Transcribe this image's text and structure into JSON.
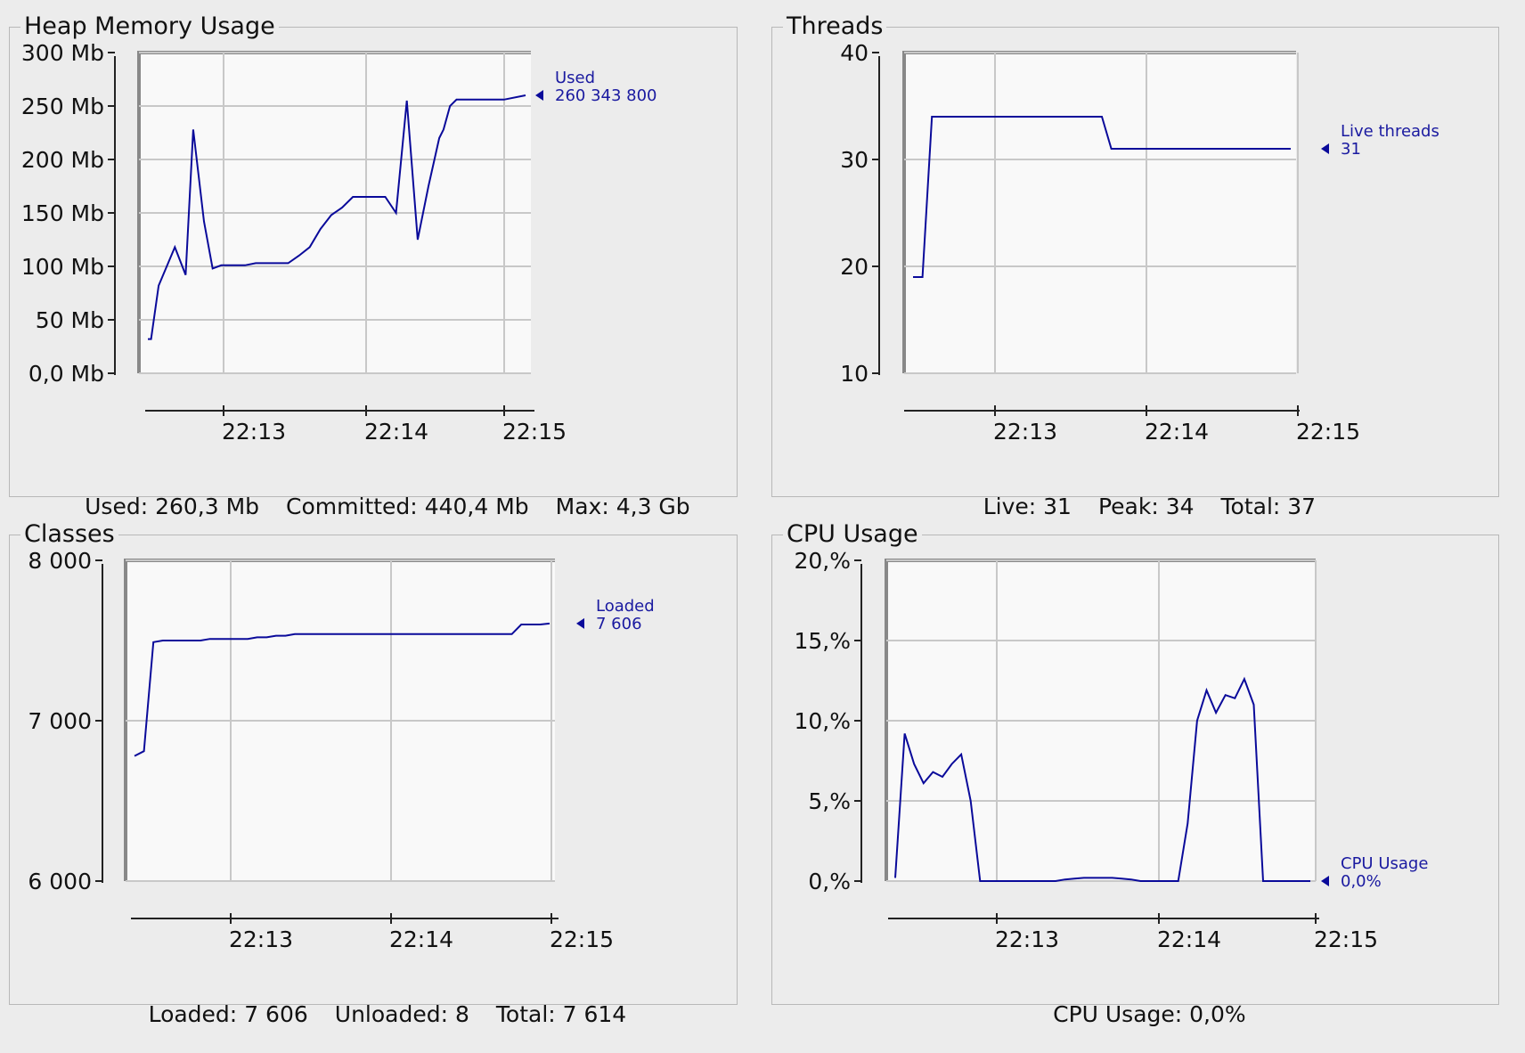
{
  "colors": {
    "series": "#0a0a9a",
    "grid": "#c8c8c8",
    "plot_bg": "#f9f9f9",
    "panel_bg": "#ececec"
  },
  "panels": [
    {
      "id": "heap",
      "title": "Heap Memory Usage",
      "legend": {
        "label": "Used",
        "value": "260 343 800"
      },
      "footer": [
        {
          "label": "Used:",
          "value": "260,3 Mb"
        },
        {
          "label": "Committed:",
          "value": "440,4 Mb"
        },
        {
          "label": "Max:",
          "value": "4,3 Gb"
        }
      ]
    },
    {
      "id": "threads",
      "title": "Threads",
      "legend": {
        "label": "Live threads",
        "value": "31"
      },
      "footer": [
        {
          "label": "Live:",
          "value": "31"
        },
        {
          "label": "Peak:",
          "value": "34"
        },
        {
          "label": "Total:",
          "value": "37"
        }
      ]
    },
    {
      "id": "classes",
      "title": "Classes",
      "legend": {
        "label": "Loaded",
        "value": "7 606"
      },
      "footer": [
        {
          "label": "Loaded:",
          "value": "7 606"
        },
        {
          "label": "Unloaded:",
          "value": "8"
        },
        {
          "label": "Total:",
          "value": "7 614"
        }
      ]
    },
    {
      "id": "cpu",
      "title": "CPU Usage",
      "legend": {
        "label": "CPU Usage",
        "value": "0,0%"
      },
      "footer": [
        {
          "label": "CPU Usage:",
          "value": "0,0%"
        }
      ]
    }
  ],
  "chart_data": [
    {
      "type": "line",
      "panel": "heap",
      "series": [
        {
          "name": "Used",
          "x": [
            0,
            0.03,
            0.1,
            0.25,
            0.35,
            0.42,
            0.52,
            0.6,
            0.68,
            0.74,
            0.8,
            0.9,
            1.0,
            1.1,
            1.2,
            1.3,
            1.4,
            1.5,
            1.6,
            1.7,
            1.8,
            1.9,
            2.0,
            2.1,
            2.2,
            2.3,
            2.4,
            2.5,
            2.6,
            2.7,
            2.74,
            2.8,
            2.86,
            2.93,
            2.98,
            3.06,
            3.1,
            3.18,
            3.3,
            3.5
          ],
          "values": [
            32,
            32,
            82,
            118,
            92,
            228,
            142,
            98,
            101,
            101,
            101,
            101,
            103,
            103,
            103,
            103,
            110,
            118,
            135,
            148,
            155,
            165,
            165,
            165,
            165,
            150,
            255,
            125,
            175,
            220,
            228,
            250,
            256,
            256,
            256,
            256,
            256,
            256,
            256,
            260
          ]
        }
      ],
      "y_ticks": [
        "0,0 Mb",
        "50 Mb",
        "100 Mb",
        "150 Mb",
        "200 Mb",
        "250 Mb",
        "300 Mb"
      ],
      "x_ticks": [
        "22:13",
        "22:14",
        "22:15"
      ],
      "ylim": [
        0,
        300
      ]
    },
    {
      "type": "line",
      "panel": "threads",
      "series": [
        {
          "name": "Live threads",
          "values": [
            19,
            19,
            34,
            34,
            34,
            34,
            34,
            34,
            34,
            34,
            34,
            34,
            34,
            34,
            34,
            34,
            34,
            34,
            34,
            34,
            34,
            31,
            31,
            31,
            31,
            31,
            31,
            31,
            31,
            31,
            31,
            31,
            31,
            31,
            31,
            31,
            31,
            31,
            31,
            31,
            31
          ]
        }
      ],
      "y_ticks": [
        "10",
        "20",
        "30",
        "40"
      ],
      "x_ticks": [
        "22:13",
        "22:14",
        "22:15"
      ],
      "ylim": [
        10,
        40
      ]
    },
    {
      "type": "line",
      "panel": "classes",
      "series": [
        {
          "name": "Loaded",
          "values": [
            6780,
            6810,
            7490,
            7500,
            7500,
            7500,
            7500,
            7500,
            7510,
            7510,
            7510,
            7510,
            7510,
            7520,
            7520,
            7530,
            7530,
            7540,
            7540,
            7540,
            7540,
            7540,
            7540,
            7540,
            7540,
            7540,
            7540,
            7540,
            7540,
            7540,
            7540,
            7540,
            7540,
            7540,
            7540,
            7540,
            7540,
            7540,
            7540,
            7540,
            7540,
            7600,
            7600,
            7600,
            7606
          ]
        }
      ],
      "y_ticks": [
        "6 000",
        "7 000",
        "8 000"
      ],
      "x_ticks": [
        "22:13",
        "22:14",
        "22:15"
      ],
      "ylim": [
        6000,
        8000
      ]
    },
    {
      "type": "line",
      "panel": "cpu",
      "series": [
        {
          "name": "CPU Usage",
          "values": [
            0.2,
            9.2,
            7.3,
            6.1,
            6.8,
            6.5,
            7.3,
            7.9,
            5.0,
            0.0,
            0.0,
            0.0,
            0.0,
            0.0,
            0.0,
            0.0,
            0.0,
            0.0,
            0.1,
            0.15,
            0.2,
            0.2,
            0.2,
            0.2,
            0.15,
            0.1,
            0.0,
            0.0,
            0.0,
            0.0,
            0.0,
            3.6,
            10.0,
            11.9,
            10.5,
            11.6,
            11.4,
            12.6,
            11.0,
            0.0,
            0.0,
            0.0,
            0.0,
            0.0,
            0.0
          ]
        }
      ],
      "y_ticks": [
        "0,%",
        "5,%",
        "10,%",
        "15,%",
        "20,%"
      ],
      "x_ticks": [
        "22:13",
        "22:14",
        "22:15"
      ],
      "ylim": [
        0,
        20
      ]
    }
  ]
}
